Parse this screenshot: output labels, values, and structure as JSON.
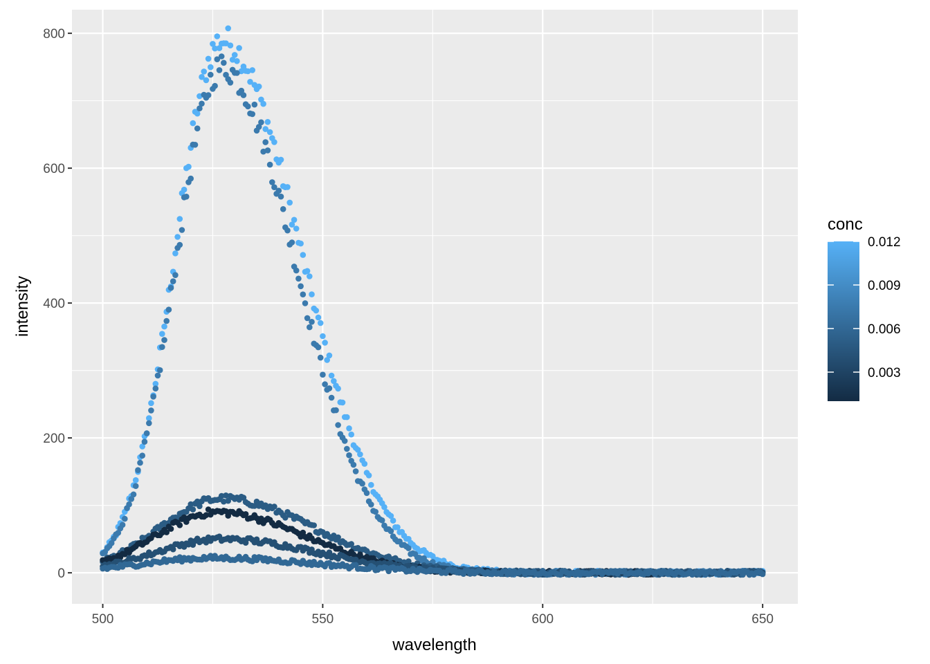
{
  "chart_data": {
    "type": "scatter",
    "title": "",
    "xlabel": "wavelength",
    "ylabel": "intensity",
    "xlim": [
      493,
      658
    ],
    "ylim": [
      -46,
      835
    ],
    "x_ticks": [
      500,
      550,
      600,
      650
    ],
    "y_ticks": [
      0,
      200,
      400,
      600,
      800
    ],
    "x_tick_labels": [
      "500",
      "550",
      "600",
      "650"
    ],
    "y_tick_labels": [
      "0",
      "200",
      "400",
      "600",
      "800"
    ],
    "grid": true,
    "legend": {
      "title": "conc",
      "type": "colorbar",
      "placement": "right",
      "range": [
        0.001,
        0.012
      ],
      "breaks": [
        0.003,
        0.006,
        0.009,
        0.012
      ],
      "labels": [
        "0.003",
        "0.006",
        "0.009",
        "0.012"
      ],
      "low_color": "#132B43",
      "high_color": "#56B1F7"
    },
    "series": [
      {
        "conc": 0.012,
        "peak_x": 527,
        "peak_y": 790,
        "width_left": 10.5,
        "width_right": 18,
        "x_range": [
          500,
          650
        ]
      },
      {
        "conc": 0.0075,
        "peak_x": 527,
        "peak_y": 750,
        "width_left": 10.5,
        "width_right": 17,
        "x_range": [
          500,
          650
        ]
      },
      {
        "conc": 0.005,
        "peak_x": 527,
        "peak_y": 110,
        "width_left": 14,
        "width_right": 21,
        "x_range": [
          500,
          650
        ]
      },
      {
        "conc": 0.001,
        "peak_x": 526,
        "peak_y": 90,
        "width_left": 14,
        "width_right": 20,
        "x_range": [
          500,
          625
        ]
      },
      {
        "conc": 0.004,
        "peak_x": 527,
        "peak_y": 50,
        "width_left": 15,
        "width_right": 22,
        "x_range": [
          500,
          650
        ]
      },
      {
        "conc": 0.006,
        "peak_x": 525,
        "peak_y": 22,
        "width_left": 16,
        "width_right": 24,
        "x_range": [
          500,
          650
        ]
      }
    ]
  }
}
